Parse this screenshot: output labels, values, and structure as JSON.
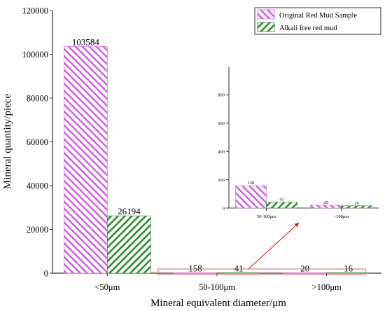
{
  "colors": {
    "original": "#cc66dd",
    "alkali_free": "#2e8b2e",
    "arrow": "#ff0000",
    "highlight_box": "#e06060"
  },
  "legend": {
    "position": "top-right",
    "items": [
      "Original Red Mud Sample",
      "Alkali free red mud"
    ]
  },
  "chart_data": [
    {
      "type": "bar",
      "role": "main",
      "categories": [
        "<50μm",
        "50-100μm",
        ">100μm"
      ],
      "series": [
        {
          "name": "Original Red Mud Sample",
          "values": [
            103584,
            158,
            20
          ],
          "pattern": "hatch-ascending"
        },
        {
          "name": "Alkali free red mud",
          "values": [
            26194,
            41,
            16
          ],
          "pattern": "hatch-descending"
        }
      ],
      "data_labels": [
        [
          "103584",
          "158",
          "20"
        ],
        [
          "26194",
          "41",
          "16"
        ]
      ],
      "xlabel": "Mineral equivalent diameter/μm",
      "ylabel": "Mineral quantity/piece",
      "ylim": [
        0,
        120000
      ],
      "yticks": [
        "0",
        "20000",
        "40000",
        "60000",
        "80000",
        "100000",
        "120000"
      ],
      "grid": false
    },
    {
      "type": "bar",
      "role": "inset",
      "categories": [
        "50-100μm",
        ">100μm"
      ],
      "series": [
        {
          "name": "Original Red Mud Sample",
          "values": [
            158,
            20
          ]
        },
        {
          "name": "Alkali free red mud",
          "values": [
            41,
            16
          ]
        }
      ],
      "data_labels": [
        [
          "158",
          "20"
        ],
        [
          "41",
          "16"
        ]
      ],
      "ylim": [
        0,
        1000
      ],
      "yticks": [
        "0",
        "200",
        "400",
        "600",
        "800"
      ],
      "grid": false
    }
  ]
}
